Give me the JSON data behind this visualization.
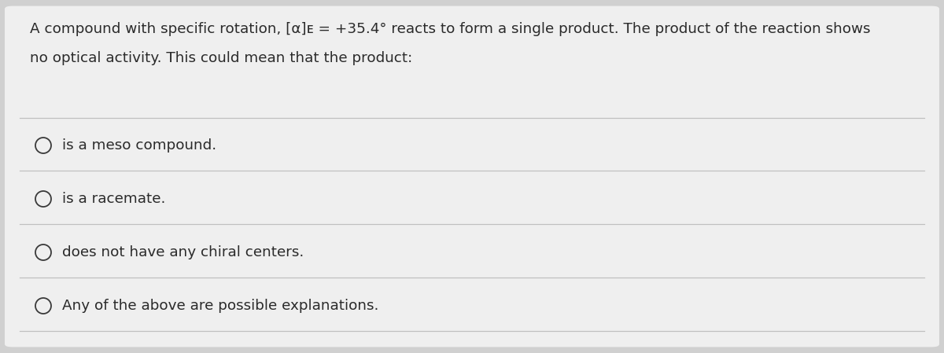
{
  "background_color": "#d0d0d0",
  "card_color": "#efefef",
  "question_line1": "A compound with specific rotation, [α]ᴇ = +35.4° reacts to form a single product. The product of the reaction shows",
  "question_line2": "no optical activity. This could mean that the product:",
  "options": [
    "is a meso compound.",
    "is a racemate.",
    "does not have any chiral centers.",
    "Any of the above are possible explanations."
  ],
  "text_color": "#2a2a2a",
  "line_color": "#c0c0c0",
  "circle_color": "#3a3a3a",
  "font_size_question": 13.2,
  "font_size_options": 13.2
}
